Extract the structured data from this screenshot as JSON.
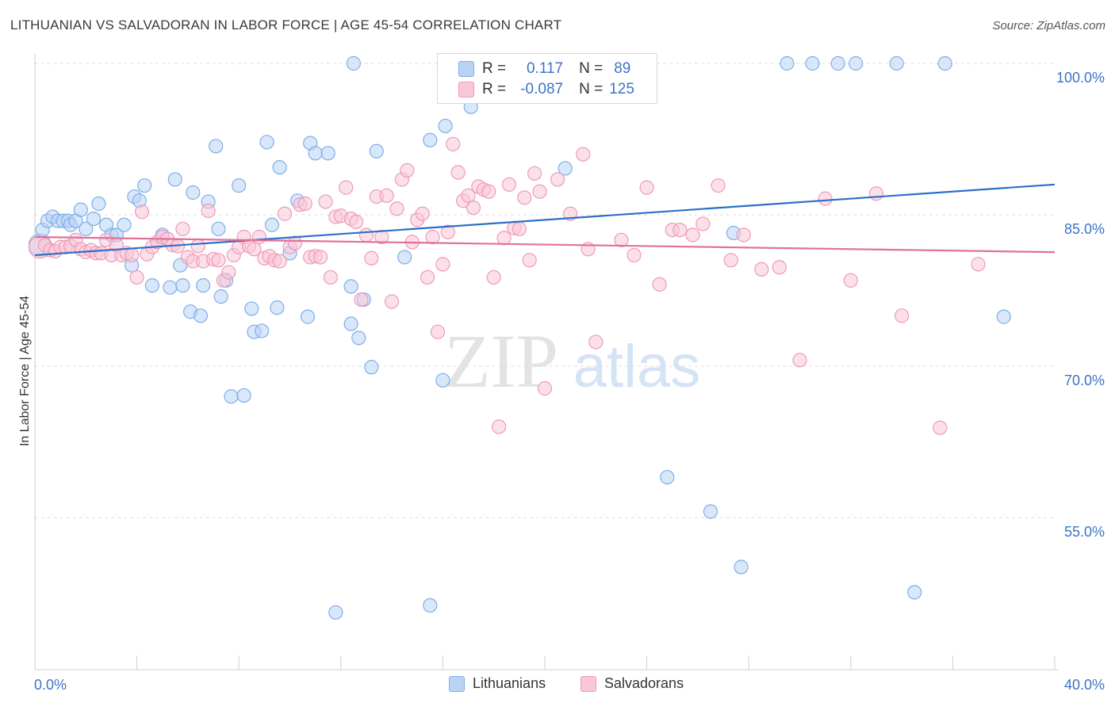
{
  "title": "LITHUANIAN VS SALVADORAN IN LABOR FORCE | AGE 45-54 CORRELATION CHART",
  "source": "Source: ZipAtlas.com",
  "watermark": {
    "zip": "ZIP",
    "atlas": "atlas"
  },
  "colors": {
    "blue": "#7eaee8",
    "blue_fill": "#b9d3f5",
    "blue_line": "#2b6fcb",
    "pink": "#ee9ab8",
    "pink_fill": "#f9c7d7",
    "pink_line": "#e0709a",
    "axis_text": "#3c73c8"
  },
  "legend": {
    "r_label": "R =",
    "n_label": "N =",
    "rows": [
      {
        "r": "0.117",
        "n": "89"
      },
      {
        "r": "-0.087",
        "n": "125"
      }
    ]
  },
  "chart_data": {
    "type": "scatter",
    "title": "LITHUANIAN VS SALVADORAN IN LABOR FORCE | AGE 45-54 CORRELATION CHART",
    "xlabel": "",
    "ylabel": "In Labor Force | Age 45-54",
    "xlim": [
      0,
      40
    ],
    "ylim": [
      40,
      101
    ],
    "x_tick_labels": [
      "0.0%",
      "40.0%"
    ],
    "y_ticks": [
      55,
      70,
      85,
      100
    ],
    "y_tick_labels": [
      "55.0%",
      "70.0%",
      "85.0%",
      "100.0%"
    ],
    "grid": "horizontal dashed",
    "legend_position": "bottom",
    "series": [
      {
        "name": "Lithuanians",
        "trend": {
          "x": [
            0,
            40
          ],
          "y": [
            81.0,
            88.0
          ]
        },
        "points": [
          [
            0.2,
            82.0
          ],
          [
            0.3,
            83.5
          ],
          [
            0.5,
            84.4
          ],
          [
            0.7,
            84.8
          ],
          [
            0.9,
            84.4
          ],
          [
            1.1,
            84.4
          ],
          [
            1.3,
            84.4
          ],
          [
            1.4,
            84.0
          ],
          [
            1.6,
            84.4
          ],
          [
            1.8,
            85.5
          ],
          [
            2.0,
            83.6
          ],
          [
            2.3,
            84.6
          ],
          [
            2.5,
            86.1
          ],
          [
            2.8,
            84.0
          ],
          [
            3.0,
            83.0
          ],
          [
            3.2,
            83.0
          ],
          [
            3.5,
            84.0
          ],
          [
            3.8,
            80.0
          ],
          [
            3.9,
            86.8
          ],
          [
            4.1,
            86.4
          ],
          [
            4.3,
            87.9
          ],
          [
            4.6,
            78.0
          ],
          [
            5.0,
            83.0
          ],
          [
            5.3,
            77.8
          ],
          [
            5.5,
            88.5
          ],
          [
            5.7,
            80.0
          ],
          [
            5.8,
            78.0
          ],
          [
            6.1,
            75.4
          ],
          [
            6.2,
            87.2
          ],
          [
            6.5,
            75.0
          ],
          [
            6.6,
            78.0
          ],
          [
            6.8,
            86.3
          ],
          [
            7.1,
            91.8
          ],
          [
            7.2,
            83.6
          ],
          [
            7.3,
            76.9
          ],
          [
            7.5,
            78.5
          ],
          [
            7.7,
            67.0
          ],
          [
            8.0,
            87.9
          ],
          [
            8.2,
            67.1
          ],
          [
            8.5,
            75.7
          ],
          [
            8.6,
            73.4
          ],
          [
            8.9,
            73.5
          ],
          [
            9.1,
            92.2
          ],
          [
            9.3,
            84.0
          ],
          [
            9.5,
            75.8
          ],
          [
            9.6,
            89.7
          ],
          [
            10.0,
            81.2
          ],
          [
            10.3,
            86.4
          ],
          [
            10.7,
            74.9
          ],
          [
            10.8,
            92.1
          ],
          [
            11.0,
            91.1
          ],
          [
            11.5,
            91.1
          ],
          [
            11.8,
            45.6
          ],
          [
            12.4,
            74.2
          ],
          [
            12.7,
            72.8
          ],
          [
            12.5,
            100.0
          ],
          [
            12.4,
            77.9
          ],
          [
            12.9,
            76.6
          ],
          [
            13.2,
            69.9
          ],
          [
            13.4,
            91.3
          ],
          [
            14.5,
            80.8
          ],
          [
            15.5,
            92.4
          ],
          [
            16.1,
            93.8
          ],
          [
            17.1,
            95.7
          ],
          [
            17.5,
            100.0
          ],
          [
            18.4,
            100.0
          ],
          [
            18.7,
            99.8
          ],
          [
            19.5,
            100.0
          ],
          [
            20.2,
            100.0
          ],
          [
            20.8,
            89.6
          ],
          [
            21.0,
            100.0
          ],
          [
            21.5,
            100.0
          ],
          [
            22.5,
            99.7
          ],
          [
            23.3,
            100.0
          ],
          [
            24.0,
            100.0
          ],
          [
            24.8,
            59.0
          ],
          [
            26.5,
            55.6
          ],
          [
            27.7,
            50.1
          ],
          [
            27.4,
            83.2
          ],
          [
            29.5,
            100.0
          ],
          [
            30.5,
            100.0
          ],
          [
            31.5,
            100.0
          ],
          [
            32.2,
            100.0
          ],
          [
            34.5,
            47.6
          ],
          [
            33.8,
            100.0
          ],
          [
            35.7,
            100.0
          ],
          [
            16.0,
            68.6
          ],
          [
            15.5,
            46.3
          ],
          [
            38.0,
            74.9
          ]
        ]
      },
      {
        "name": "Salvadorans",
        "trend": {
          "x": [
            0,
            40
          ],
          "y": [
            82.8,
            81.3
          ]
        },
        "points": [
          [
            0.2,
            81.8
          ],
          [
            0.4,
            82.0
          ],
          [
            0.6,
            81.5
          ],
          [
            0.8,
            81.4
          ],
          [
            1.0,
            81.8
          ],
          [
            1.2,
            81.8
          ],
          [
            1.4,
            81.9
          ],
          [
            1.6,
            82.5
          ],
          [
            1.8,
            81.6
          ],
          [
            2.0,
            81.3
          ],
          [
            2.2,
            81.5
          ],
          [
            2.4,
            81.2
          ],
          [
            2.6,
            81.2
          ],
          [
            2.8,
            82.5
          ],
          [
            3.0,
            81.0
          ],
          [
            3.2,
            82.0
          ],
          [
            3.4,
            81.0
          ],
          [
            3.6,
            81.2
          ],
          [
            3.8,
            81.0
          ],
          [
            4.0,
            78.8
          ],
          [
            4.2,
            85.3
          ],
          [
            4.4,
            81.1
          ],
          [
            4.6,
            81.8
          ],
          [
            4.8,
            82.3
          ],
          [
            5.0,
            82.8
          ],
          [
            5.2,
            82.6
          ],
          [
            5.4,
            82.0
          ],
          [
            5.6,
            81.9
          ],
          [
            5.8,
            83.6
          ],
          [
            6.0,
            80.8
          ],
          [
            6.2,
            80.4
          ],
          [
            6.4,
            81.9
          ],
          [
            6.6,
            80.4
          ],
          [
            6.8,
            85.4
          ],
          [
            7.0,
            80.6
          ],
          [
            7.2,
            80.5
          ],
          [
            7.4,
            78.5
          ],
          [
            7.6,
            79.3
          ],
          [
            7.8,
            81.0
          ],
          [
            8.0,
            81.8
          ],
          [
            8.2,
            82.8
          ],
          [
            8.4,
            81.9
          ],
          [
            8.6,
            81.6
          ],
          [
            8.8,
            82.8
          ],
          [
            9.0,
            80.7
          ],
          [
            9.2,
            80.9
          ],
          [
            9.4,
            80.5
          ],
          [
            9.6,
            80.4
          ],
          [
            9.8,
            85.1
          ],
          [
            10.0,
            81.8
          ],
          [
            10.2,
            82.2
          ],
          [
            10.4,
            86.0
          ],
          [
            10.6,
            86.1
          ],
          [
            10.8,
            80.8
          ],
          [
            11.0,
            80.9
          ],
          [
            11.2,
            80.8
          ],
          [
            11.4,
            86.3
          ],
          [
            11.6,
            78.8
          ],
          [
            11.8,
            84.8
          ],
          [
            12.0,
            84.9
          ],
          [
            12.2,
            87.7
          ],
          [
            12.4,
            84.6
          ],
          [
            12.6,
            84.3
          ],
          [
            12.8,
            76.6
          ],
          [
            13.0,
            83.0
          ],
          [
            13.2,
            80.7
          ],
          [
            13.4,
            86.8
          ],
          [
            13.6,
            82.8
          ],
          [
            13.8,
            86.9
          ],
          [
            14.0,
            76.4
          ],
          [
            14.2,
            85.6
          ],
          [
            14.4,
            88.5
          ],
          [
            14.6,
            89.4
          ],
          [
            14.8,
            82.3
          ],
          [
            15.0,
            84.5
          ],
          [
            15.2,
            85.1
          ],
          [
            15.4,
            78.8
          ],
          [
            15.6,
            82.8
          ],
          [
            15.8,
            73.4
          ],
          [
            16.0,
            80.1
          ],
          [
            16.2,
            83.3
          ],
          [
            16.4,
            92.0
          ],
          [
            16.6,
            89.2
          ],
          [
            16.8,
            86.4
          ],
          [
            17.0,
            86.9
          ],
          [
            17.2,
            85.7
          ],
          [
            17.4,
            87.8
          ],
          [
            17.6,
            87.5
          ],
          [
            17.8,
            87.3
          ],
          [
            18.0,
            78.8
          ],
          [
            18.2,
            64.0
          ],
          [
            18.4,
            82.7
          ],
          [
            18.6,
            88.0
          ],
          [
            18.8,
            83.7
          ],
          [
            19.0,
            83.6
          ],
          [
            19.2,
            86.7
          ],
          [
            19.4,
            80.5
          ],
          [
            19.6,
            89.1
          ],
          [
            19.8,
            87.3
          ],
          [
            20.0,
            67.8
          ],
          [
            20.5,
            88.5
          ],
          [
            21.0,
            85.1
          ],
          [
            21.5,
            91.0
          ],
          [
            21.7,
            81.6
          ],
          [
            22.0,
            72.4
          ],
          [
            23.0,
            82.5
          ],
          [
            23.5,
            81.0
          ],
          [
            24.0,
            87.7
          ],
          [
            24.5,
            78.1
          ],
          [
            25.0,
            83.5
          ],
          [
            25.3,
            83.5
          ],
          [
            25.8,
            83.0
          ],
          [
            26.2,
            84.1
          ],
          [
            26.8,
            87.9
          ],
          [
            27.3,
            80.5
          ],
          [
            27.8,
            83.0
          ],
          [
            28.5,
            79.6
          ],
          [
            29.2,
            79.8
          ],
          [
            30.0,
            70.6
          ],
          [
            31.0,
            86.6
          ],
          [
            32.0,
            78.5
          ],
          [
            33.0,
            87.1
          ],
          [
            34.0,
            75.0
          ],
          [
            35.5,
            63.9
          ],
          [
            37.0,
            80.1
          ]
        ]
      }
    ]
  }
}
